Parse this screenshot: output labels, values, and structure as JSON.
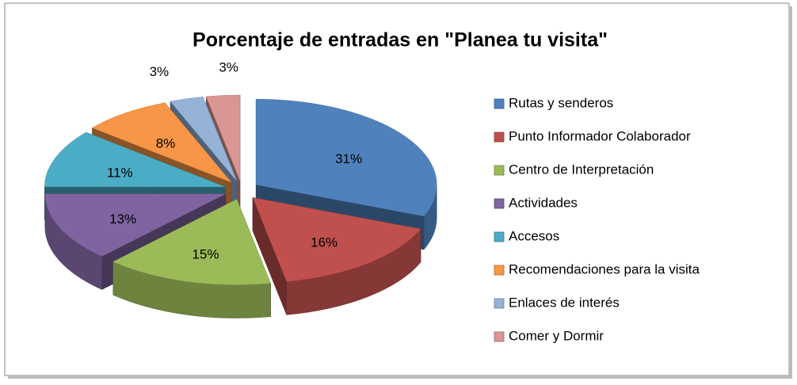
{
  "chart_data": {
    "type": "pie3d",
    "title": "Porcentaje de entradas en \"Planea tu visita\"",
    "categories": [
      "Rutas y senderos",
      "Punto Informador Colaborador",
      "Centro de Interpretación",
      "Actividades",
      "Accesos",
      "Recomendaciones para la visita",
      "Enlaces de interés",
      "Comer y Dormir"
    ],
    "values": [
      31,
      16,
      15,
      13,
      11,
      8,
      3,
      3
    ],
    "value_labels": [
      "31%",
      "16%",
      "15%",
      "13%",
      "11%",
      "8%",
      "3%",
      "3%"
    ],
    "colors": [
      "#4f81bd",
      "#c0504d",
      "#9bbb59",
      "#8064a2",
      "#4bacc6",
      "#f79646",
      "#95b3d7",
      "#d99694"
    ],
    "legend": "right"
  }
}
